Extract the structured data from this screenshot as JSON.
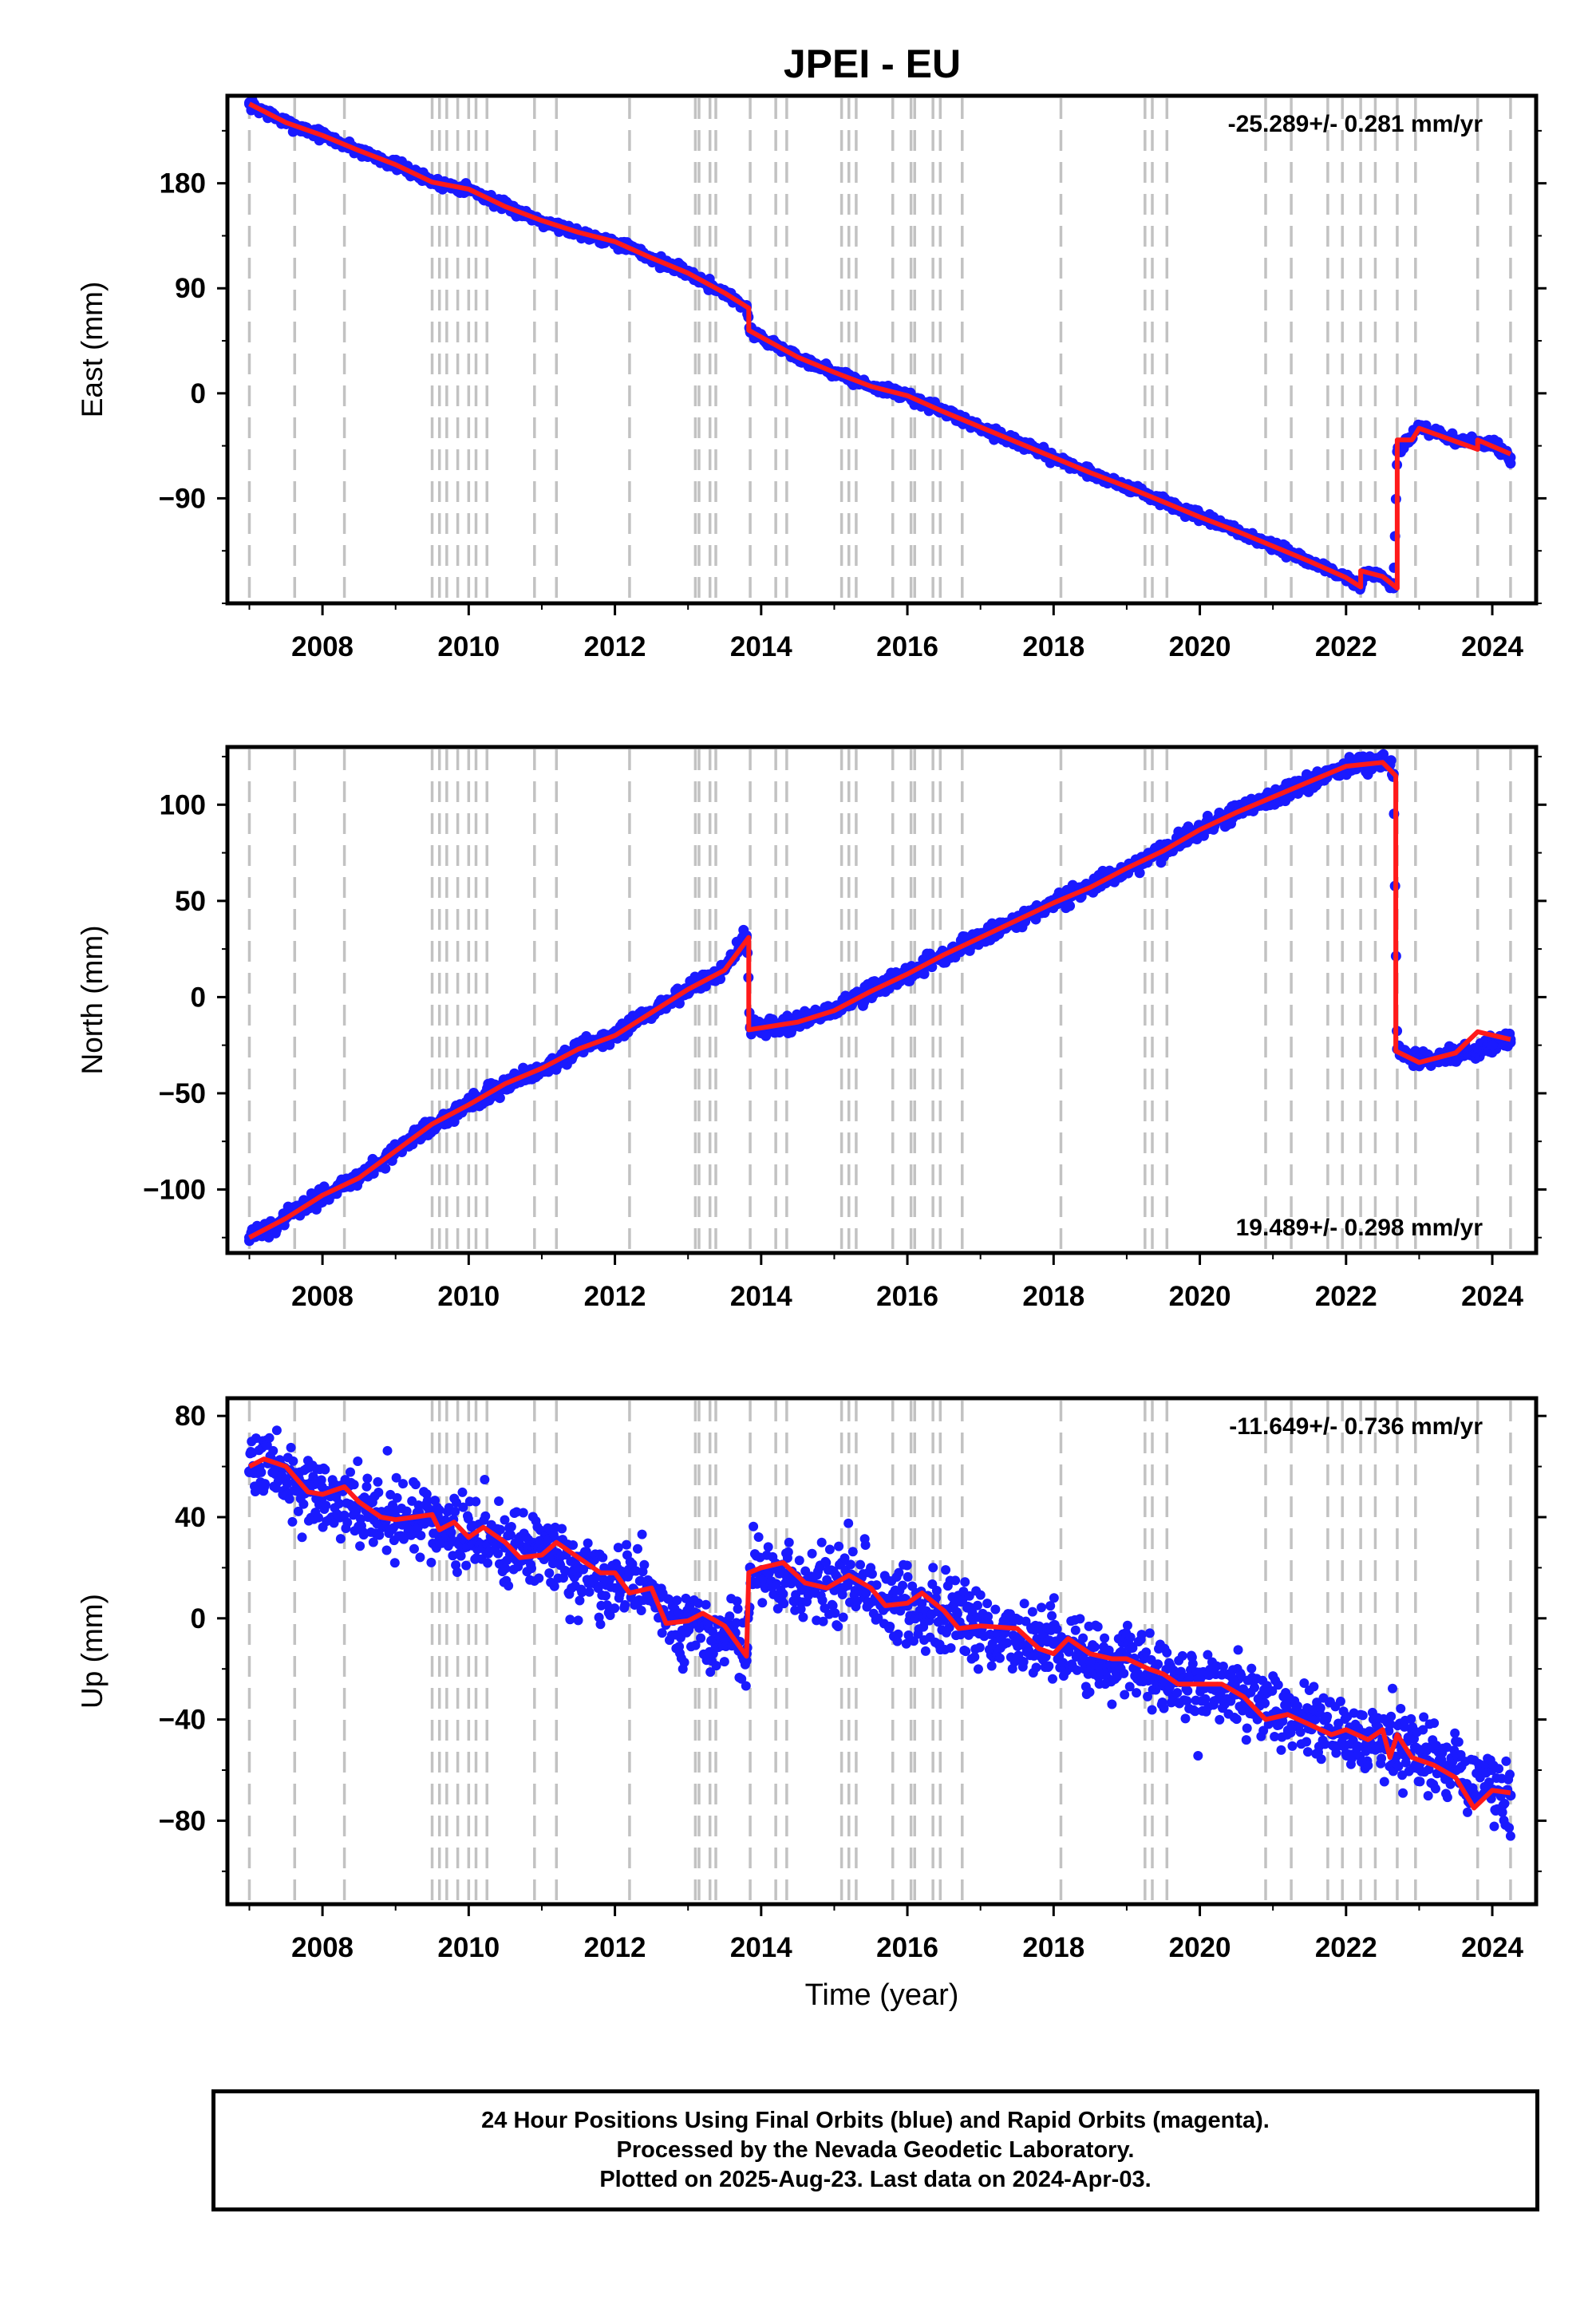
{
  "title": "JPEI - EU",
  "colors": {
    "data": "#1a1aff",
    "model": "#ff1a1a",
    "events": "#c2c2c2"
  },
  "chart_data": [
    {
      "type": "scatter",
      "name": "east",
      "ylabel": "East (mm)",
      "xlabel": "",
      "xlim": [
        2006.7,
        2024.6
      ],
      "ylim": [
        -180,
        255
      ],
      "yticks": [
        -90,
        0,
        90,
        180
      ],
      "xticks": [
        2008,
        2010,
        2012,
        2014,
        2016,
        2018,
        2020,
        2022,
        2024
      ],
      "rate": "-25.289+/- 0.281 mm/yr",
      "rate_position": "top-right",
      "series": [
        {
          "values_desc": "daily positions",
          "x": [
            2007.0,
            2007.5,
            2008.0,
            2008.5,
            2009.0,
            2009.5,
            2010.0,
            2010.5,
            2011.0,
            2011.5,
            2012.0,
            2012.5,
            2013.0,
            2013.5,
            2013.8,
            2013.85,
            2014.5,
            2015.0,
            2015.5,
            2016.0,
            2016.5,
            2017.0,
            2017.5,
            2018.0,
            2018.5,
            2019.0,
            2019.5,
            2020.0,
            2020.5,
            2021.0,
            2021.5,
            2022.0,
            2022.2,
            2022.25,
            2022.5,
            2022.65,
            2022.7,
            2023.0,
            2023.5,
            2024.0,
            2024.25
          ],
          "y": [
            248,
            232,
            221,
            208,
            196,
            181,
            175,
            160,
            148,
            138,
            130,
            116,
            103,
            86,
            74,
            53,
            31,
            18,
            6,
            -2,
            -16,
            -29,
            -42,
            -55,
            -68,
            -80,
            -93,
            -106,
            -118,
            -131,
            -144,
            -158,
            -166,
            -153,
            -157,
            -167,
            -50,
            -30,
            -40,
            -44,
            -55
          ]
        }
      ],
      "model": {
        "x": [
          2007.0,
          2007.5,
          2008.0,
          2008.5,
          2009.0,
          2009.5,
          2010.0,
          2010.5,
          2011.0,
          2011.5,
          2012.0,
          2012.5,
          2013.0,
          2013.5,
          2013.83,
          2013.83,
          2014.5,
          2015.0,
          2015.5,
          2016.0,
          2016.5,
          2017.0,
          2017.5,
          2018.0,
          2018.5,
          2019.0,
          2019.5,
          2020.0,
          2020.5,
          2021.0,
          2021.5,
          2022.0,
          2022.2,
          2022.2,
          2022.5,
          2022.7,
          2022.7,
          2022.9,
          2023.0,
          2023.8,
          2023.8,
          2024.25
        ],
        "y": [
          248,
          232,
          221,
          208,
          196,
          181,
          175,
          160,
          148,
          138,
          130,
          116,
          103,
          86,
          73,
          54,
          31,
          18,
          6,
          -2,
          -16,
          -29,
          -42,
          -55,
          -68,
          -80,
          -93,
          -106,
          -118,
          -131,
          -144,
          -158,
          -166,
          -152,
          -157,
          -167,
          -40,
          -40,
          -30,
          -48,
          -40,
          -52
        ]
      }
    },
    {
      "type": "scatter",
      "name": "north",
      "ylabel": "North (mm)",
      "xlabel": "",
      "xlim": [
        2006.7,
        2024.6
      ],
      "ylim": [
        -133,
        130
      ],
      "yticks": [
        -100,
        -50,
        0,
        50,
        100
      ],
      "xticks": [
        2008,
        2010,
        2012,
        2014,
        2016,
        2018,
        2020,
        2022,
        2024
      ],
      "rate": "19.489+/- 0.298 mm/yr",
      "rate_position": "bottom-right",
      "series": [
        {
          "values_desc": "daily positions",
          "x": [
            2007.0,
            2007.5,
            2008.0,
            2008.5,
            2009.0,
            2009.5,
            2010.0,
            2010.5,
            2011.0,
            2011.5,
            2012.0,
            2012.5,
            2013.0,
            2013.5,
            2013.8,
            2013.85,
            2014.5,
            2015.0,
            2015.5,
            2016.0,
            2016.5,
            2017.0,
            2017.5,
            2018.0,
            2018.5,
            2019.0,
            2019.5,
            2020.0,
            2020.5,
            2021.0,
            2021.5,
            2022.0,
            2022.5,
            2022.65,
            2022.7,
            2023.0,
            2023.5,
            2024.0,
            2024.25
          ],
          "y": [
            -125,
            -115,
            -103,
            -94,
            -80,
            -66,
            -56,
            -45,
            -37,
            -27,
            -20,
            -8,
            4,
            14,
            32,
            -16,
            -13,
            -7,
            3,
            12,
            22,
            31,
            40,
            49,
            57,
            67,
            76,
            87,
            96,
            104,
            112,
            120,
            122,
            116,
            -27,
            -32,
            -30,
            -25,
            -22
          ]
        }
      ],
      "model": {
        "x": [
          2007.0,
          2007.5,
          2008.0,
          2008.5,
          2009.0,
          2009.5,
          2010.0,
          2010.5,
          2011.0,
          2011.5,
          2012.0,
          2012.5,
          2013.0,
          2013.5,
          2013.83,
          2013.83,
          2014.5,
          2015.0,
          2015.5,
          2016.0,
          2016.5,
          2017.0,
          2017.5,
          2018.0,
          2018.5,
          2019.0,
          2019.5,
          2020.0,
          2020.5,
          2021.0,
          2021.5,
          2022.0,
          2022.5,
          2022.68,
          2022.68,
          2023.0,
          2023.5,
          2023.8,
          2024.25
        ],
        "y": [
          -125,
          -115,
          -103,
          -94,
          -80,
          -66,
          -56,
          -45,
          -37,
          -27,
          -20,
          -8,
          4,
          14,
          31,
          -17,
          -13,
          -7,
          3,
          12,
          22,
          31,
          40,
          49,
          57,
          67,
          76,
          87,
          96,
          104,
          112,
          120,
          122,
          115,
          -28,
          -34,
          -29,
          -18,
          -22
        ]
      }
    },
    {
      "type": "scatter",
      "name": "up",
      "ylabel": "Up (mm)",
      "xlabel": "Time (year)",
      "xlim": [
        2006.7,
        2024.6
      ],
      "ylim": [
        -113,
        87
      ],
      "yticks": [
        -80,
        -40,
        0,
        40,
        80
      ],
      "xticks": [
        2008,
        2010,
        2012,
        2014,
        2016,
        2018,
        2020,
        2022,
        2024
      ],
      "rate": "-11.649+/- 0.736 mm/yr",
      "rate_position": "top-right",
      "series": [
        {
          "values_desc": "daily positions",
          "x": [
            2007.0,
            2007.3,
            2007.7,
            2008.0,
            2008.5,
            2009.0,
            2009.5,
            2010.0,
            2010.5,
            2011.0,
            2011.5,
            2012.0,
            2012.5,
            2012.7,
            2013.0,
            2013.5,
            2013.8,
            2013.85,
            2014.5,
            2015.0,
            2015.3,
            2015.7,
            2016.0,
            2016.5,
            2017.0,
            2017.5,
            2018.0,
            2018.5,
            2019.0,
            2019.5,
            2020.0,
            2020.5,
            2021.0,
            2021.5,
            2022.0,
            2022.5,
            2023.0,
            2023.5,
            2024.0,
            2024.25
          ],
          "y": [
            58,
            62,
            50,
            48,
            45,
            40,
            38,
            32,
            28,
            27,
            20,
            17,
            12,
            -2,
            -3,
            -5,
            -14,
            20,
            15,
            12,
            16,
            5,
            5,
            0,
            -4,
            -10,
            -10,
            -17,
            -16,
            -24,
            -24,
            -30,
            -38,
            -40,
            -46,
            -48,
            -52,
            -60,
            -69,
            -70
          ]
        }
      ],
      "model": {
        "x": [
          2007.0,
          2007.2,
          2007.5,
          2007.8,
          2008.0,
          2008.3,
          2008.5,
          2008.8,
          2009.0,
          2009.5,
          2009.6,
          2009.8,
          2010.0,
          2010.2,
          2010.5,
          2010.7,
          2011.0,
          2011.2,
          2011.5,
          2011.8,
          2012.0,
          2012.2,
          2012.5,
          2012.7,
          2013.0,
          2013.2,
          2013.5,
          2013.8,
          2013.83,
          2014.0,
          2014.3,
          2014.6,
          2014.9,
          2015.2,
          2015.5,
          2015.7,
          2016.0,
          2016.2,
          2016.5,
          2016.7,
          2017.0,
          2017.5,
          2017.8,
          2018.0,
          2018.2,
          2018.5,
          2018.8,
          2019.0,
          2019.3,
          2019.5,
          2019.7,
          2020.0,
          2020.3,
          2020.6,
          2020.9,
          2021.2,
          2021.5,
          2021.8,
          2022.0,
          2022.3,
          2022.5,
          2022.6,
          2022.7,
          2022.9,
          2023.2,
          2023.5,
          2023.75,
          2024.0,
          2024.25
        ],
        "y": [
          60,
          63,
          60,
          50,
          49,
          52,
          46,
          40,
          39,
          41,
          35,
          38,
          32,
          36,
          30,
          24,
          25,
          30,
          24,
          18,
          18,
          10,
          12,
          -2,
          -1,
          2,
          -3,
          -15,
          18,
          20,
          22,
          14,
          12,
          17,
          12,
          5,
          6,
          10,
          3,
          -4,
          -3,
          -4,
          -12,
          -14,
          -8,
          -14,
          -16,
          -16,
          -20,
          -22,
          -26,
          -26,
          -26,
          -31,
          -40,
          -38,
          -42,
          -46,
          -44,
          -48,
          -44,
          -55,
          -46,
          -55,
          -58,
          -63,
          -75,
          -68,
          -69
        ]
      }
    }
  ],
  "event_lines": [
    2007.0,
    2007.62,
    2008.3,
    2009.5,
    2009.6,
    2009.7,
    2009.85,
    2010.0,
    2010.1,
    2010.25,
    2010.9,
    2011.2,
    2012.2,
    2013.1,
    2013.15,
    2013.3,
    2013.38,
    2013.85,
    2014.2,
    2014.35,
    2015.1,
    2015.2,
    2015.3,
    2015.8,
    2016.05,
    2016.1,
    2016.35,
    2016.45,
    2016.75,
    2018.1,
    2019.25,
    2019.35,
    2019.55,
    2020.9,
    2021.25,
    2021.75,
    2021.95,
    2022.2,
    2022.4,
    2022.7,
    2022.95,
    2023.8,
    2024.25
  ],
  "footer": {
    "line1": "24 Hour Positions Using Final Orbits (blue) and Rapid Orbits (magenta).",
    "line2": "Processed by the Nevada Geodetic Laboratory.",
    "line3": "Plotted on 2025-Aug-23. Last data on 2024-Apr-03."
  }
}
